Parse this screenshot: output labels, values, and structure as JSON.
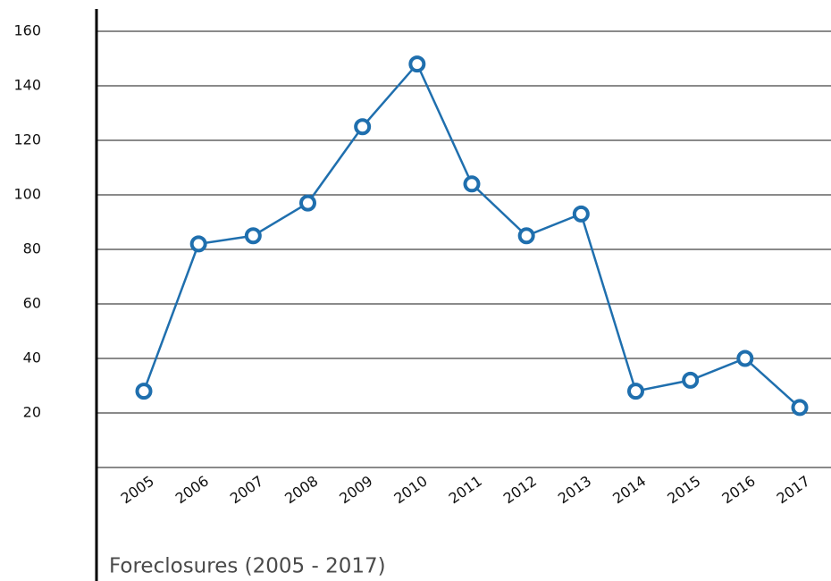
{
  "chart_data": {
    "type": "line",
    "title": "Foreclosures (2005 - 2017)",
    "categories": [
      "2005",
      "2006",
      "2007",
      "2008",
      "2009",
      "2010",
      "2011",
      "2012",
      "2013",
      "2014",
      "2015",
      "2016",
      "2017"
    ],
    "values": [
      28,
      82,
      85,
      97,
      125,
      148,
      104,
      85,
      93,
      28,
      32,
      40,
      22
    ],
    "color": "#1f6fae",
    "ylim": [
      0,
      160
    ],
    "yticks": [
      20,
      40,
      60,
      80,
      100,
      120,
      140,
      160
    ],
    "grid": true
  }
}
